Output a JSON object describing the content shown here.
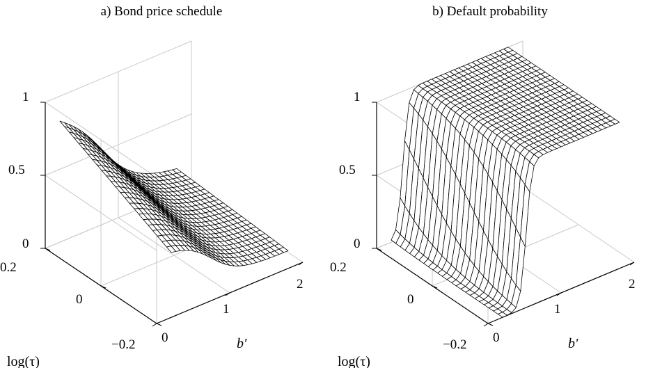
{
  "chart_data": [
    {
      "type": "surface3d",
      "title": "a) Bond price schedule",
      "xlabel": "b′",
      "ylabel": "log(τ)",
      "zlabel": "",
      "xlim": [
        0,
        2
      ],
      "ylim": [
        -0.2,
        0.2
      ],
      "zlim": [
        0,
        1
      ],
      "x_ticks": [
        "0",
        "1",
        "2"
      ],
      "y_ticks": [
        "−0.2",
        "0",
        "0.2"
      ],
      "z_ticks": [
        "0",
        "0.5",
        "1"
      ],
      "grid": true,
      "x_range": [
        0.2,
        1.8
      ],
      "y_range": [
        -0.2,
        0.2
      ],
      "surface": {
        "description_values": "bond price q(b′, log τ); approx. 0.76 at b′=0.2, log τ=0.2 decreasing to ~0.12 at b′=1.8, log τ=−0.2",
        "corner_values": {
          "b0.2_t0.2": 0.76,
          "b1.8_t0.2": 0.27,
          "b0.2_t-0.2": 0.46,
          "b1.8_t-0.2": 0.12
        }
      }
    },
    {
      "type": "surface3d",
      "title": "b) Default probability",
      "xlabel": "b′",
      "ylabel": "log(τ)",
      "zlabel": "",
      "xlim": [
        0,
        2
      ],
      "ylim": [
        -0.2,
        0.2
      ],
      "zlim": [
        0,
        1
      ],
      "x_ticks": [
        "0",
        "1",
        "2"
      ],
      "y_ticks": [
        "−0.2",
        "0",
        "0.2"
      ],
      "z_ticks": [
        "0",
        "0.5",
        "1"
      ],
      "grid": true,
      "x_range": [
        0.2,
        1.8
      ],
      "y_range": [
        -0.2,
        0.2
      ],
      "surface": {
        "description_values": "default probability rises steeply from 0 to 1 around b′≈0.35–0.5",
        "corner_values": {
          "b0.2_t0.2": 0.0,
          "b1.8_t0.2": 1.0,
          "b0.2_t-0.2": 0.0,
          "b1.8_t-0.2": 1.0
        }
      }
    }
  ]
}
